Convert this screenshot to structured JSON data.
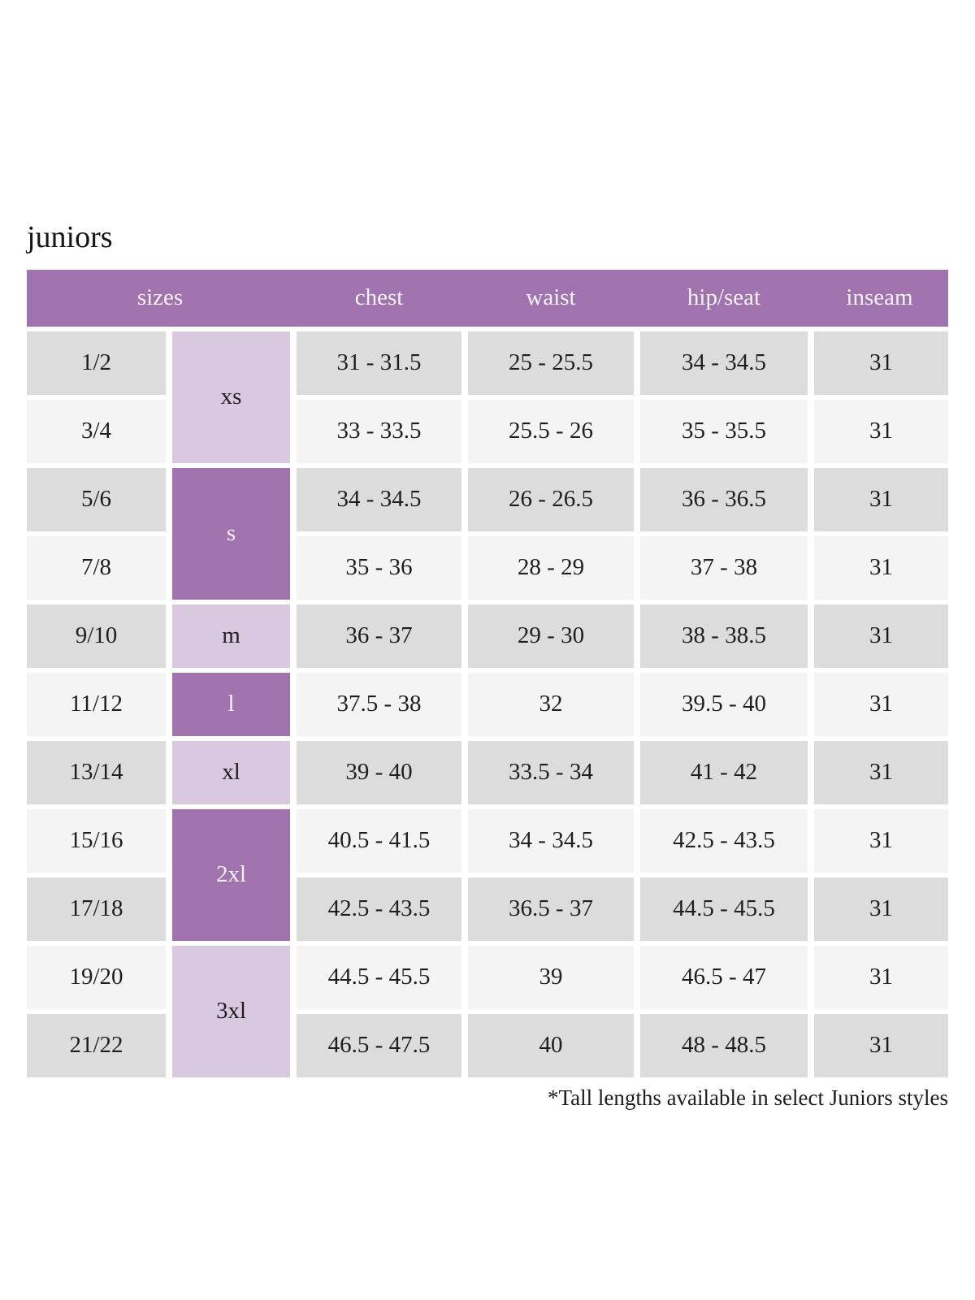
{
  "title": "juniors",
  "footnote": "*Tall lengths available in select Juniors styles",
  "colors": {
    "header_purple": "#a173ae",
    "dark_group_cell_purple": "#a173ae",
    "light_group_cell_purple": "#d9c9e0",
    "row_shaded_gray": "#dcdcdc",
    "row_light_gray": "#f4f4f4",
    "header_text": "#f7f3f8",
    "body_text": "#1e1e1e"
  },
  "table": {
    "headers": {
      "sizes": "sizes",
      "chest": "chest",
      "waist": "waist",
      "hip_seat": "hip/seat",
      "inseam": "inseam"
    },
    "groups": [
      {
        "label": "xs"
      },
      {
        "label": "s"
      },
      {
        "label": "m"
      },
      {
        "label": "l"
      },
      {
        "label": "xl"
      },
      {
        "label": "2xl"
      },
      {
        "label": "3xl"
      }
    ],
    "rows": [
      {
        "size": "1/2",
        "chest": "31 - 31.5",
        "waist": "25 - 25.5",
        "hip_seat": "34 - 34.5",
        "inseam": "31"
      },
      {
        "size": "3/4",
        "chest": "33 - 33.5",
        "waist": "25.5 - 26",
        "hip_seat": "35 - 35.5",
        "inseam": "31"
      },
      {
        "size": "5/6",
        "chest": "34 - 34.5",
        "waist": "26 - 26.5",
        "hip_seat": "36 - 36.5",
        "inseam": "31"
      },
      {
        "size": "7/8",
        "chest": "35 - 36",
        "waist": "28 - 29",
        "hip_seat": "37 - 38",
        "inseam": "31"
      },
      {
        "size": "9/10",
        "chest": "36 - 37",
        "waist": "29 - 30",
        "hip_seat": "38 - 38.5",
        "inseam": "31"
      },
      {
        "size": "11/12",
        "chest": "37.5 - 38",
        "waist": "32",
        "hip_seat": "39.5 - 40",
        "inseam": "31"
      },
      {
        "size": "13/14",
        "chest": "39 - 40",
        "waist": "33.5 - 34",
        "hip_seat": "41 - 42",
        "inseam": "31"
      },
      {
        "size": "15/16",
        "chest": "40.5 - 41.5",
        "waist": "34 - 34.5",
        "hip_seat": "42.5 - 43.5",
        "inseam": "31"
      },
      {
        "size": "17/18",
        "chest": "42.5 - 43.5",
        "waist": "36.5 - 37",
        "hip_seat": "44.5 - 45.5",
        "inseam": "31"
      },
      {
        "size": "19/20",
        "chest": "44.5 - 45.5",
        "waist": "39",
        "hip_seat": "46.5 - 47",
        "inseam": "31"
      },
      {
        "size": "21/22",
        "chest": "46.5 - 47.5",
        "waist": "40",
        "hip_seat": "48 - 48.5",
        "inseam": "31"
      }
    ]
  }
}
